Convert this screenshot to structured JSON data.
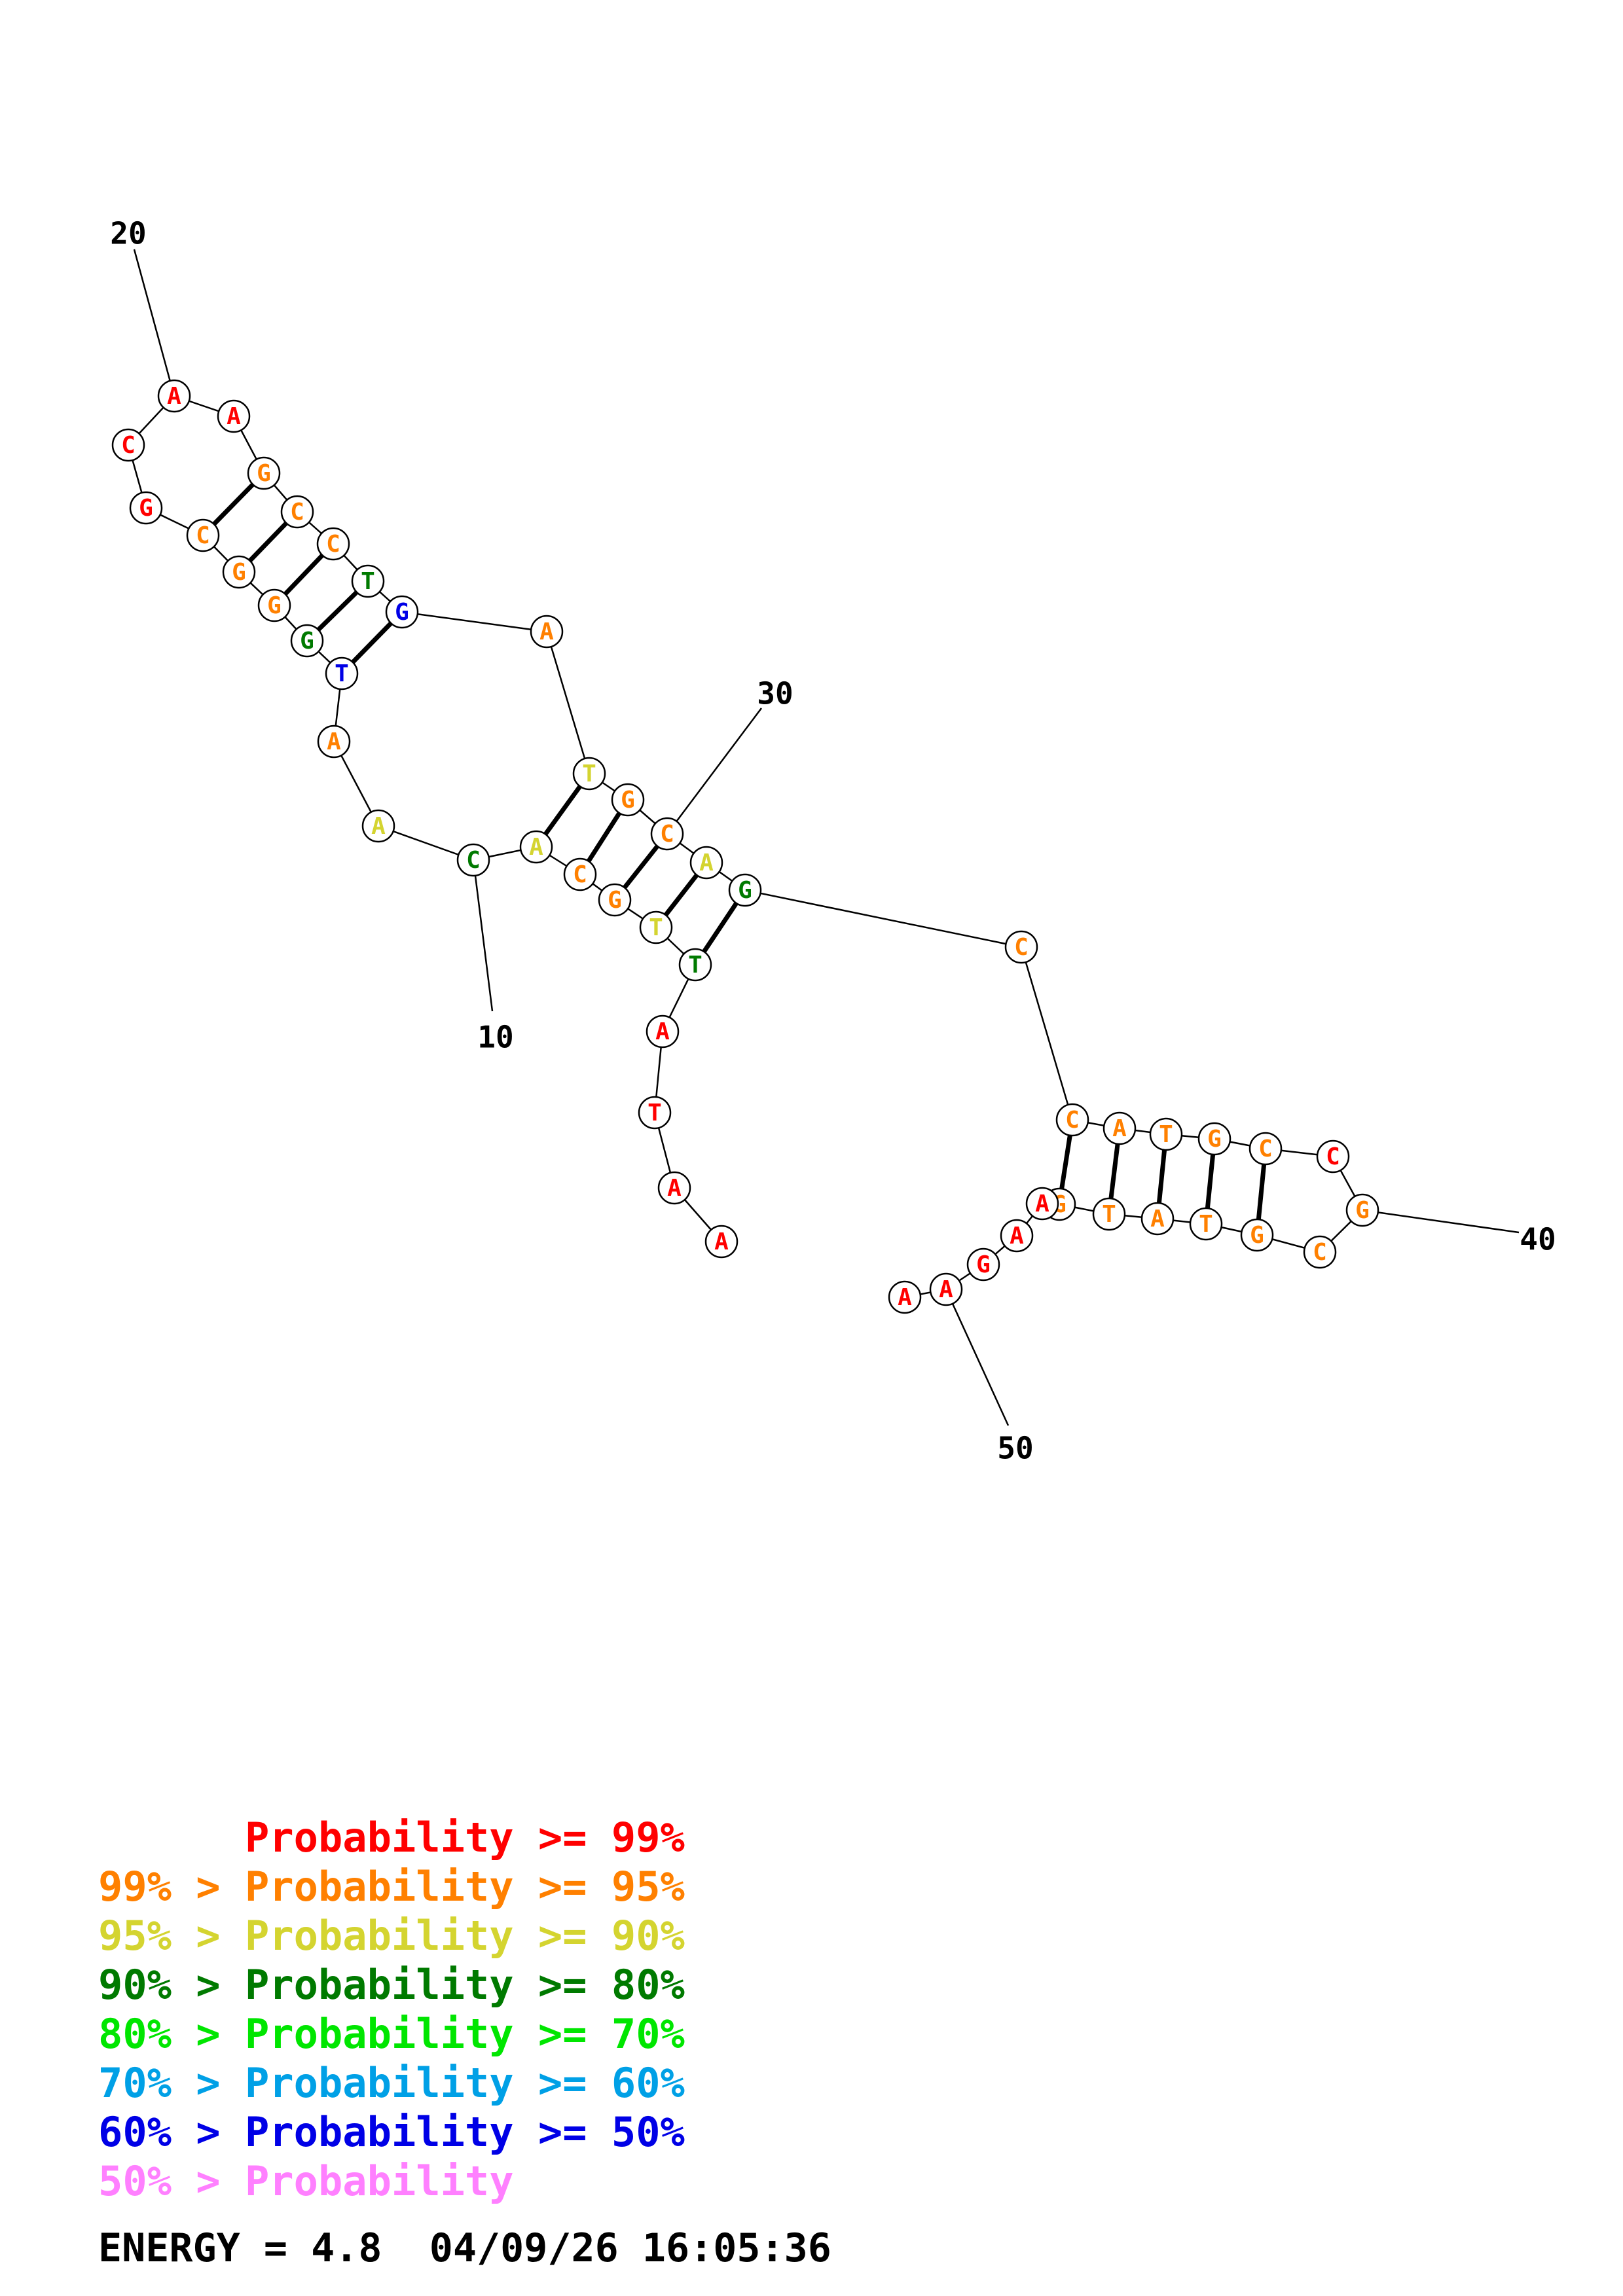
{
  "colors": {
    "p99": "#ff0000",
    "p95": "#ff8000",
    "p90": "#d4d430",
    "p80": "#007a00",
    "p70": "#00e600",
    "p60": "#00a0e6",
    "p50": "#0000e6",
    "plow": "#ff80ff"
  },
  "structure": {
    "position_labels": [
      "10",
      "20",
      "30",
      "40",
      "50"
    ],
    "nucleotides": [
      {
        "base": "A",
        "prob": "p99"
      },
      {
        "base": "A",
        "prob": "p99"
      },
      {
        "base": "T",
        "prob": "p99"
      },
      {
        "base": "A",
        "prob": "p99"
      },
      {
        "base": "T",
        "prob": "p80"
      },
      {
        "base": "T",
        "prob": "p90"
      },
      {
        "base": "G",
        "prob": "p95"
      },
      {
        "base": "C",
        "prob": "p95"
      },
      {
        "base": "A",
        "prob": "p90"
      },
      {
        "base": "C",
        "prob": "p80"
      },
      {
        "base": "A",
        "prob": "p90"
      },
      {
        "base": "A",
        "prob": "p95"
      },
      {
        "base": "T",
        "prob": "p50"
      },
      {
        "base": "G",
        "prob": "p80"
      },
      {
        "base": "G",
        "prob": "p95"
      },
      {
        "base": "G",
        "prob": "p95"
      },
      {
        "base": "C",
        "prob": "p95"
      },
      {
        "base": "G",
        "prob": "p99"
      },
      {
        "base": "C",
        "prob": "p99"
      },
      {
        "base": "A",
        "prob": "p99"
      },
      {
        "base": "A",
        "prob": "p99"
      },
      {
        "base": "G",
        "prob": "p95"
      },
      {
        "base": "C",
        "prob": "p95"
      },
      {
        "base": "C",
        "prob": "p95"
      },
      {
        "base": "T",
        "prob": "p80"
      },
      {
        "base": "G",
        "prob": "p50"
      },
      {
        "base": "A",
        "prob": "p95"
      },
      {
        "base": "T",
        "prob": "p90"
      },
      {
        "base": "G",
        "prob": "p95"
      },
      {
        "base": "C",
        "prob": "p95"
      },
      {
        "base": "A",
        "prob": "p90"
      },
      {
        "base": "G",
        "prob": "p80"
      },
      {
        "base": "C",
        "prob": "p95"
      },
      {
        "base": "C",
        "prob": "p95"
      },
      {
        "base": "A",
        "prob": "p95"
      },
      {
        "base": "T",
        "prob": "p95"
      },
      {
        "base": "G",
        "prob": "p95"
      },
      {
        "base": "C",
        "prob": "p95"
      },
      {
        "base": "C",
        "prob": "p99"
      },
      {
        "base": "G",
        "prob": "p95"
      },
      {
        "base": "C",
        "prob": "p95"
      },
      {
        "base": "G",
        "prob": "p95"
      },
      {
        "base": "T",
        "prob": "p95"
      },
      {
        "base": "A",
        "prob": "p95"
      },
      {
        "base": "T",
        "prob": "p95"
      },
      {
        "base": "G",
        "prob": "p95"
      },
      {
        "base": "A",
        "prob": "p99"
      },
      {
        "base": "A",
        "prob": "p99"
      },
      {
        "base": "G",
        "prob": "p99"
      },
      {
        "base": "A",
        "prob": "p99"
      },
      {
        "base": "A",
        "prob": "p99"
      }
    ]
  },
  "legend": [
    {
      "text": "      Probability >= 99%",
      "prob": "p99"
    },
    {
      "text": "99% > Probability >= 95%",
      "prob": "p95"
    },
    {
      "text": "95% > Probability >= 90%",
      "prob": "p90"
    },
    {
      "text": "90% > Probability >= 80%",
      "prob": "p80"
    },
    {
      "text": "80% > Probability >= 70%",
      "prob": "p70"
    },
    {
      "text": "70% > Probability >= 60%",
      "prob": "p60"
    },
    {
      "text": "60% > Probability >= 50%",
      "prob": "p50"
    },
    {
      "text": "50% > Probability",
      "prob": "plow"
    }
  ],
  "energy_line": "ENERGY = 4.8  04/09/26 16:05:36"
}
